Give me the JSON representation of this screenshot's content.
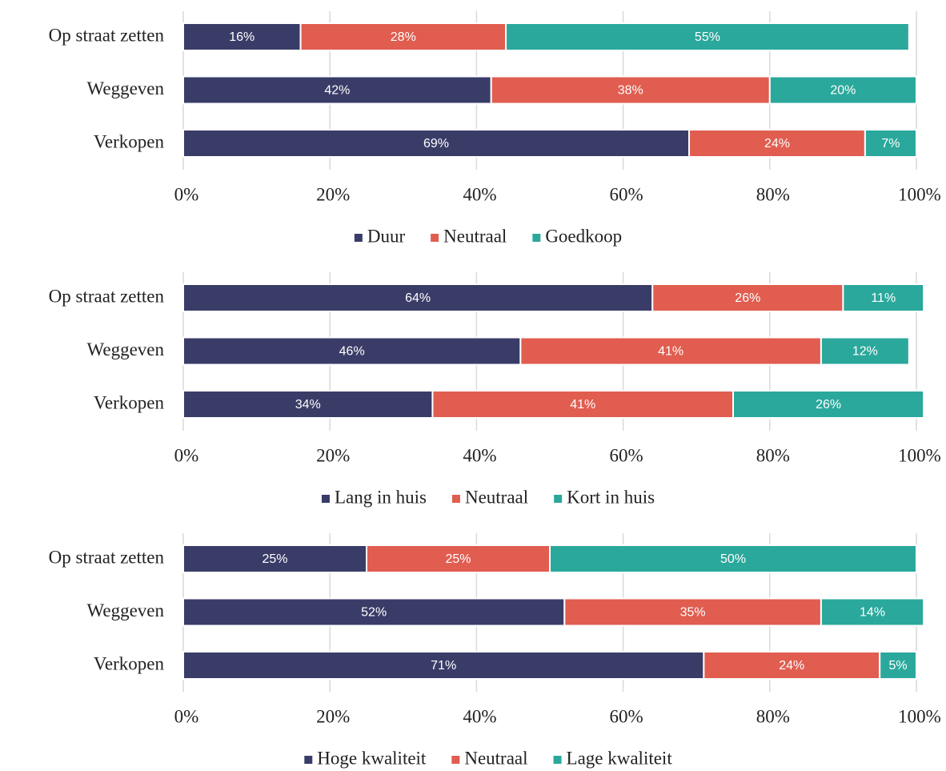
{
  "chart_data": [
    {
      "type": "stacked-bar-horizontal",
      "categories": [
        "Op straat zetten",
        "Weggeven",
        "Verkopen"
      ],
      "series": [
        {
          "name": "Duur",
          "color": "#3a3c68",
          "values": [
            16,
            42,
            69
          ],
          "value_labels": [
            "16%",
            "42%",
            "69%"
          ]
        },
        {
          "name": "Neutraal",
          "color": "#e05d50",
          "values": [
            28,
            38,
            24
          ],
          "value_labels": [
            "28%",
            "38%",
            "24%"
          ]
        },
        {
          "name": "Goedkoop",
          "color": "#2ba89c",
          "values": [
            55,
            20,
            7
          ],
          "value_labels": [
            "55%",
            "20%",
            "7%"
          ]
        }
      ],
      "xlim": [
        0,
        100
      ],
      "xticks": [
        {
          "value": 0,
          "label": "0%"
        },
        {
          "value": 20,
          "label": "20%"
        },
        {
          "value": 40,
          "label": "40%"
        },
        {
          "value": 60,
          "label": "60%"
        },
        {
          "value": 80,
          "label": "80%"
        },
        {
          "value": 100,
          "label": "100%"
        }
      ],
      "grid": true,
      "legend": "bottom"
    },
    {
      "type": "stacked-bar-horizontal",
      "categories": [
        "Op straat zetten",
        "Weggeven",
        "Verkopen"
      ],
      "series": [
        {
          "name": "Lang in huis",
          "color": "#3a3c68",
          "values": [
            64,
            46,
            34
          ],
          "value_labels": [
            "64%",
            "46%",
            "34%"
          ]
        },
        {
          "name": "Neutraal",
          "color": "#e05d50",
          "values": [
            26,
            41,
            41
          ],
          "value_labels": [
            "26%",
            "41%",
            "41%"
          ]
        },
        {
          "name": "Kort in huis",
          "color": "#2ba89c",
          "values": [
            11,
            12,
            26
          ],
          "value_labels": [
            "11%",
            "12%",
            "26%"
          ]
        }
      ],
      "xlim": [
        0,
        100
      ],
      "xticks": [
        {
          "value": 0,
          "label": "0%"
        },
        {
          "value": 20,
          "label": "20%"
        },
        {
          "value": 40,
          "label": "40%"
        },
        {
          "value": 60,
          "label": "60%"
        },
        {
          "value": 80,
          "label": "80%"
        },
        {
          "value": 100,
          "label": "100%"
        }
      ],
      "grid": true,
      "legend": "bottom"
    },
    {
      "type": "stacked-bar-horizontal",
      "categories": [
        "Op straat zetten",
        "Weggeven",
        "Verkopen"
      ],
      "series": [
        {
          "name": "Hoge kwaliteit",
          "color": "#3a3c68",
          "values": [
            25,
            52,
            71
          ],
          "value_labels": [
            "25%",
            "52%",
            "71%"
          ]
        },
        {
          "name": "Neutraal",
          "color": "#e05d50",
          "values": [
            25,
            35,
            24
          ],
          "value_labels": [
            "25%",
            "35%",
            "24%"
          ]
        },
        {
          "name": "Lage kwaliteit",
          "color": "#2ba89c",
          "values": [
            50,
            14,
            5
          ],
          "value_labels": [
            "50%",
            "14%",
            "5%"
          ]
        }
      ],
      "xlim": [
        0,
        100
      ],
      "xticks": [
        {
          "value": 0,
          "label": "0%"
        },
        {
          "value": 20,
          "label": "20%"
        },
        {
          "value": 40,
          "label": "40%"
        },
        {
          "value": 60,
          "label": "60%"
        },
        {
          "value": 80,
          "label": "80%"
        },
        {
          "value": 100,
          "label": "100%"
        }
      ],
      "grid": true,
      "legend": "bottom"
    }
  ]
}
